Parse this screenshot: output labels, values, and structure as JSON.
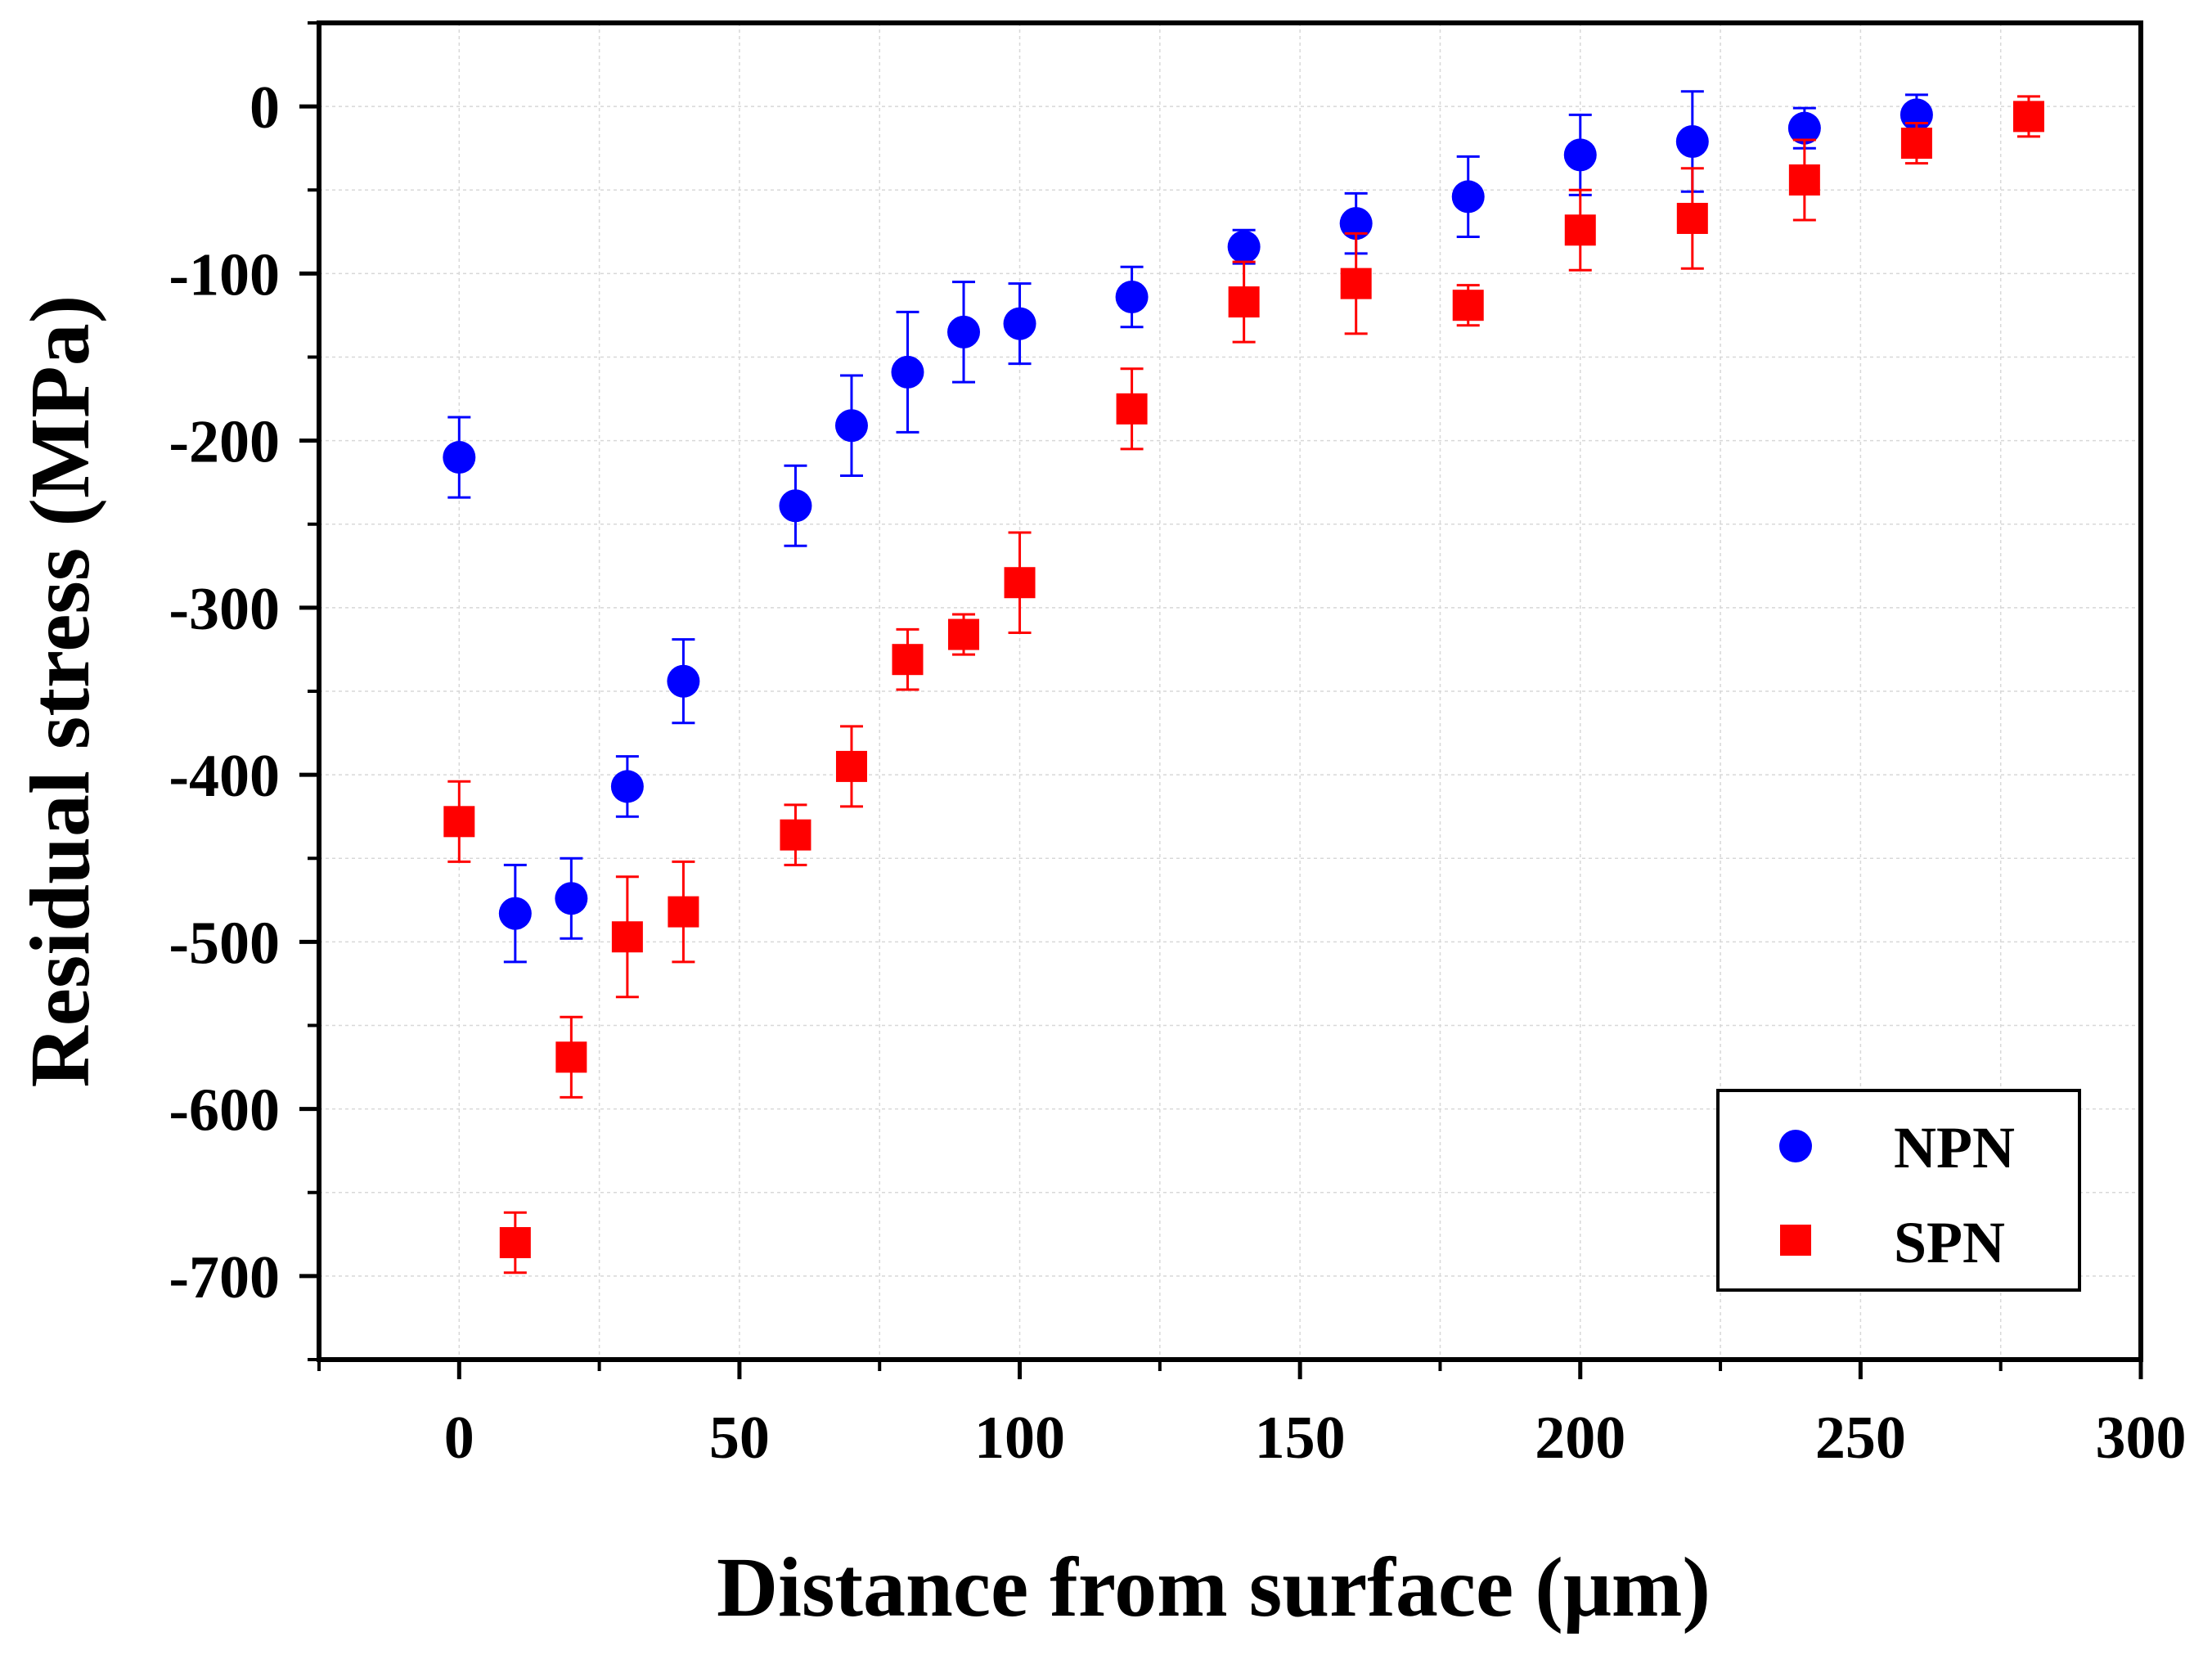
{
  "chart_data": {
    "type": "scatter",
    "title": "",
    "xlabel": "Distance from surface (μm)",
    "ylabel": "Residual stress (MPa)",
    "xlim": [
      -25,
      300
    ],
    "ylim": [
      -750,
      50
    ],
    "x_ticks": [
      0,
      50,
      100,
      150,
      200,
      250,
      300
    ],
    "x_tick_labels": [
      "0",
      "50",
      "100",
      "150",
      "200",
      "250",
      "300"
    ],
    "y_ticks": [
      0,
      -100,
      -200,
      -300,
      -400,
      -500,
      -600,
      -700
    ],
    "y_tick_labels": [
      "0",
      "-100",
      "-200",
      "-300",
      "-400",
      "-500",
      "-600",
      "-700"
    ],
    "grid": true,
    "legend_position": "bottom-right",
    "series": [
      {
        "name": "NPN",
        "marker": "circle",
        "color": "#0000ff",
        "x": [
          0,
          10,
          20,
          30,
          40,
          60,
          70,
          80,
          90,
          100,
          120,
          140,
          160,
          180,
          200,
          220,
          240,
          260
        ],
        "y": [
          -210,
          -483,
          -474,
          -407,
          -344,
          -239,
          -191,
          -159,
          -135,
          -130,
          -114,
          -84,
          -70,
          -54,
          -29,
          -21,
          -13,
          -5
        ],
        "error": [
          24,
          29,
          24,
          18,
          25,
          24,
          30,
          36,
          30,
          24,
          18,
          10,
          18,
          24,
          24,
          30,
          12,
          12
        ]
      },
      {
        "name": "SPN",
        "marker": "square",
        "color": "#ff0000",
        "x": [
          0,
          10,
          20,
          30,
          40,
          60,
          70,
          80,
          90,
          100,
          120,
          140,
          160,
          180,
          200,
          220,
          240,
          260,
          280
        ],
        "y": [
          -428,
          -680,
          -569,
          -497,
          -482,
          -436,
          -395,
          -331,
          -316,
          -285,
          -181,
          -117,
          -106,
          -119,
          -74,
          -67,
          -44,
          -22,
          -6
        ],
        "error": [
          24,
          18,
          24,
          36,
          30,
          18,
          24,
          18,
          12,
          30,
          24,
          24,
          30,
          12,
          24,
          30,
          24,
          12,
          12
        ]
      }
    ]
  }
}
